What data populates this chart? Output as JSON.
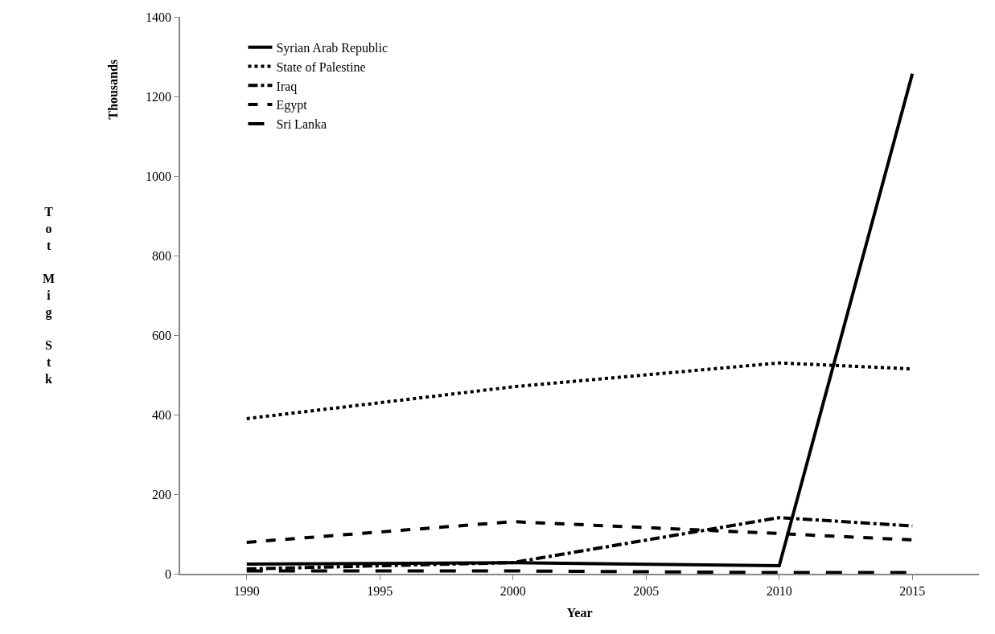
{
  "chart_data": {
    "type": "line",
    "xlabel": "Year",
    "ylabel": "Tot Mig Stk",
    "annotations": [
      "Thousands"
    ],
    "x": [
      1990,
      2000,
      2010,
      2015
    ],
    "series": [
      {
        "name": "Syrian Arab Republic",
        "color": "#000000",
        "line_style": "solid",
        "values": [
          24,
          28,
          20,
          1257
        ]
      },
      {
        "name": "State of Palestine",
        "color": "#000000",
        "line_style": "dotted",
        "values": [
          390,
          470,
          530,
          515
        ]
      },
      {
        "name": "Iraq",
        "color": "#000000",
        "line_style": "dashdot",
        "values": [
          12,
          28,
          141,
          120
        ]
      },
      {
        "name": "Egypt",
        "color": "#000000",
        "line_style": "dashed",
        "values": [
          79,
          131,
          101,
          85
        ]
      },
      {
        "name": "Sri Lanka",
        "color": "#000000",
        "line_style": "longdash",
        "values": [
          7,
          7,
          3,
          3
        ]
      }
    ],
    "xlim": [
      1987.5,
      2017.5
    ],
    "xticks": [
      1990,
      1995,
      2000,
      2005,
      2010,
      2015
    ],
    "ylim": [
      0,
      1400
    ],
    "yticks": [
      0,
      200,
      400,
      600,
      800,
      1000,
      1200,
      1400
    ],
    "grid": false,
    "legend": "top left",
    "marker": "none"
  }
}
